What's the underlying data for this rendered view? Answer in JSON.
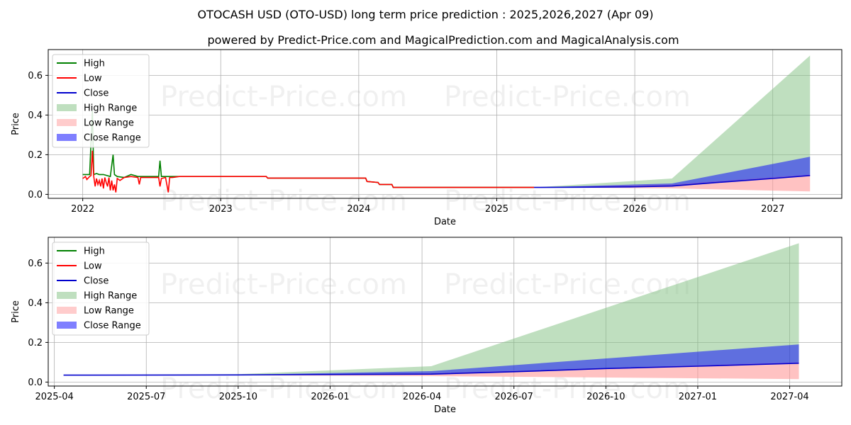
{
  "title": "OTOCASH USD (OTO-USD) long term price prediction : 2025,2026,2027 (Apr 09)",
  "subtitle": "powered by Predict-Price.com and MagicalPrediction.com and MagicalAnalysis.com",
  "watermark": "Predict-Price.com",
  "chart_data": [
    {
      "type": "line",
      "name": "long-term-overview",
      "xlabel": "Date",
      "ylabel": "Price",
      "x_unit": "year",
      "xlim": [
        2021.75,
        2027.5
      ],
      "ylim": [
        -0.02,
        0.73
      ],
      "x_ticks": [
        {
          "label": "2022",
          "value": 2022
        },
        {
          "label": "2023",
          "value": 2023
        },
        {
          "label": "2024",
          "value": 2024
        },
        {
          "label": "2025",
          "value": 2025
        },
        {
          "label": "2026",
          "value": 2026
        },
        {
          "label": "2027",
          "value": 2027
        }
      ],
      "y_ticks": [
        {
          "label": "0.0",
          "value": 0.0
        },
        {
          "label": "0.2",
          "value": 0.2
        },
        {
          "label": "0.4",
          "value": 0.4
        },
        {
          "label": "0.6",
          "value": 0.6
        }
      ],
      "grid": true,
      "legend": "top-left",
      "legend_items": [
        {
          "label": "High",
          "kind": "line",
          "color": "#008000"
        },
        {
          "label": "Low",
          "kind": "line",
          "color": "#ff0000"
        },
        {
          "label": "Close",
          "kind": "line",
          "color": "#0000cd"
        },
        {
          "label": "High Range",
          "kind": "patch",
          "color": "#7fbf7f"
        },
        {
          "label": "Low Range",
          "kind": "patch",
          "color": "#ff9999"
        },
        {
          "label": "Close Range",
          "kind": "patch",
          "color": "#0000ff"
        }
      ],
      "series": [
        {
          "name": "High",
          "color": "#008000",
          "x": [
            2022.0,
            2022.05,
            2022.07,
            2022.08,
            2022.1,
            2022.12,
            2022.15,
            2022.2,
            2022.22,
            2022.23,
            2022.25,
            2022.3,
            2022.35,
            2022.4,
            2022.45,
            2022.5,
            2022.55,
            2022.56,
            2022.57,
            2022.6,
            2022.65,
            2022.7,
            2022.8,
            2023.0,
            2023.33,
            2023.34,
            2024.0,
            2024.05,
            2024.06,
            2024.14,
            2024.15,
            2024.24,
            2024.25,
            2025.27
          ],
          "y": [
            0.1,
            0.1,
            0.42,
            0.1,
            0.105,
            0.1,
            0.1,
            0.09,
            0.2,
            0.1,
            0.09,
            0.085,
            0.1,
            0.09,
            0.09,
            0.09,
            0.09,
            0.17,
            0.09,
            0.09,
            0.09,
            0.09,
            0.09,
            0.09,
            0.09,
            0.082,
            0.082,
            0.082,
            0.065,
            0.06,
            0.05,
            0.05,
            0.035,
            0.035
          ]
        },
        {
          "name": "Low",
          "color": "#ff0000",
          "x": [
            2022.0,
            2022.02,
            2022.03,
            2022.05,
            2022.06,
            2022.07,
            2022.08,
            2022.09,
            2022.1,
            2022.11,
            2022.12,
            2022.13,
            2022.14,
            2022.15,
            2022.16,
            2022.17,
            2022.18,
            2022.19,
            2022.2,
            2022.21,
            2022.22,
            2022.23,
            2022.24,
            2022.25,
            2022.27,
            2022.3,
            2022.35,
            2022.4,
            2022.41,
            2022.42,
            2022.5,
            2022.55,
            2022.56,
            2022.57,
            2022.6,
            2022.62,
            2022.63,
            2022.65,
            2022.7,
            2023.0,
            2023.33,
            2023.34,
            2024.0,
            2024.05,
            2024.06,
            2024.14,
            2024.15,
            2024.24,
            2024.25,
            2025.27
          ],
          "y": [
            0.08,
            0.09,
            0.075,
            0.09,
            0.095,
            0.22,
            0.09,
            0.04,
            0.08,
            0.05,
            0.07,
            0.04,
            0.08,
            0.03,
            0.085,
            0.06,
            0.04,
            0.085,
            0.02,
            0.07,
            0.02,
            0.05,
            0.01,
            0.08,
            0.07,
            0.085,
            0.09,
            0.085,
            0.05,
            0.085,
            0.085,
            0.085,
            0.04,
            0.08,
            0.085,
            0.01,
            0.085,
            0.085,
            0.09,
            0.09,
            0.09,
            0.082,
            0.082,
            0.082,
            0.065,
            0.06,
            0.05,
            0.05,
            0.035,
            0.035
          ]
        },
        {
          "name": "Close",
          "color": "#0000cd",
          "x": [
            2025.27,
            2025.6,
            2026.0,
            2026.27,
            2026.6,
            2027.0,
            2027.27
          ],
          "y": [
            0.035,
            0.036,
            0.038,
            0.042,
            0.06,
            0.08,
            0.095
          ]
        }
      ],
      "bands": [
        {
          "name": "High Range",
          "color": "#7fbf7f",
          "opacity": 0.5,
          "x": [
            2025.27,
            2026.27,
            2027.27
          ],
          "lower": [
            0.035,
            0.04,
            0.1
          ],
          "upper": [
            0.035,
            0.08,
            0.7
          ]
        },
        {
          "name": "Low Range",
          "color": "#ff9999",
          "opacity": 0.6,
          "x": [
            2025.27,
            2026.27,
            2027.27
          ],
          "lower": [
            0.035,
            0.03,
            0.015
          ],
          "upper": [
            0.035,
            0.05,
            0.1
          ]
        },
        {
          "name": "Close Range",
          "color": "#0000ff",
          "opacity": 0.5,
          "x": [
            2025.27,
            2026.27,
            2027.27
          ],
          "lower": [
            0.035,
            0.04,
            0.095
          ],
          "upper": [
            0.035,
            0.055,
            0.19
          ]
        }
      ]
    },
    {
      "type": "line",
      "name": "forecast-detail",
      "xlabel": "Date",
      "ylabel": "Price",
      "x_unit": "month-index (0 = 2025-01)",
      "xlim": [
        2.8,
        28.7
      ],
      "ylim": [
        -0.02,
        0.73
      ],
      "x_ticks": [
        {
          "label": "2025-04",
          "value": 3
        },
        {
          "label": "2025-07",
          "value": 6
        },
        {
          "label": "2025-10",
          "value": 9
        },
        {
          "label": "2026-01",
          "value": 12
        },
        {
          "label": "2026-04",
          "value": 15
        },
        {
          "label": "2026-07",
          "value": 18
        },
        {
          "label": "2026-10",
          "value": 21
        },
        {
          "label": "2027-01",
          "value": 24
        },
        {
          "label": "2027-04",
          "value": 27
        }
      ],
      "y_ticks": [
        {
          "label": "0.0",
          "value": 0.0
        },
        {
          "label": "0.2",
          "value": 0.2
        },
        {
          "label": "0.4",
          "value": 0.4
        },
        {
          "label": "0.6",
          "value": 0.6
        }
      ],
      "grid": true,
      "legend": "top-left",
      "legend_items": [
        {
          "label": "High",
          "kind": "line",
          "color": "#008000"
        },
        {
          "label": "Low",
          "kind": "line",
          "color": "#ff0000"
        },
        {
          "label": "Close",
          "kind": "line",
          "color": "#0000cd"
        },
        {
          "label": "High Range",
          "kind": "patch",
          "color": "#7fbf7f"
        },
        {
          "label": "Low Range",
          "kind": "patch",
          "color": "#ff9999"
        },
        {
          "label": "Close Range",
          "kind": "patch",
          "color": "#0000ff"
        }
      ],
      "series": [
        {
          "name": "Close",
          "color": "#0000cd",
          "x": [
            3.3,
            9,
            15.3,
            18,
            21,
            24,
            27.3
          ],
          "y": [
            0.035,
            0.036,
            0.04,
            0.052,
            0.068,
            0.08,
            0.095
          ]
        }
      ],
      "bands": [
        {
          "name": "High Range",
          "color": "#7fbf7f",
          "opacity": 0.5,
          "x": [
            3.3,
            9,
            15.3,
            27.3
          ],
          "lower": [
            0.035,
            0.035,
            0.04,
            0.1
          ],
          "upper": [
            0.035,
            0.04,
            0.08,
            0.7
          ]
        },
        {
          "name": "Low Range",
          "color": "#ff9999",
          "opacity": 0.6,
          "x": [
            3.3,
            9,
            15.3,
            27.3
          ],
          "lower": [
            0.035,
            0.034,
            0.03,
            0.015
          ],
          "upper": [
            0.035,
            0.036,
            0.045,
            0.1
          ]
        },
        {
          "name": "Close Range",
          "color": "#0000ff",
          "opacity": 0.5,
          "x": [
            3.3,
            9,
            15.3,
            27.3
          ],
          "lower": [
            0.035,
            0.035,
            0.04,
            0.095
          ],
          "upper": [
            0.035,
            0.037,
            0.055,
            0.19
          ]
        }
      ]
    }
  ]
}
